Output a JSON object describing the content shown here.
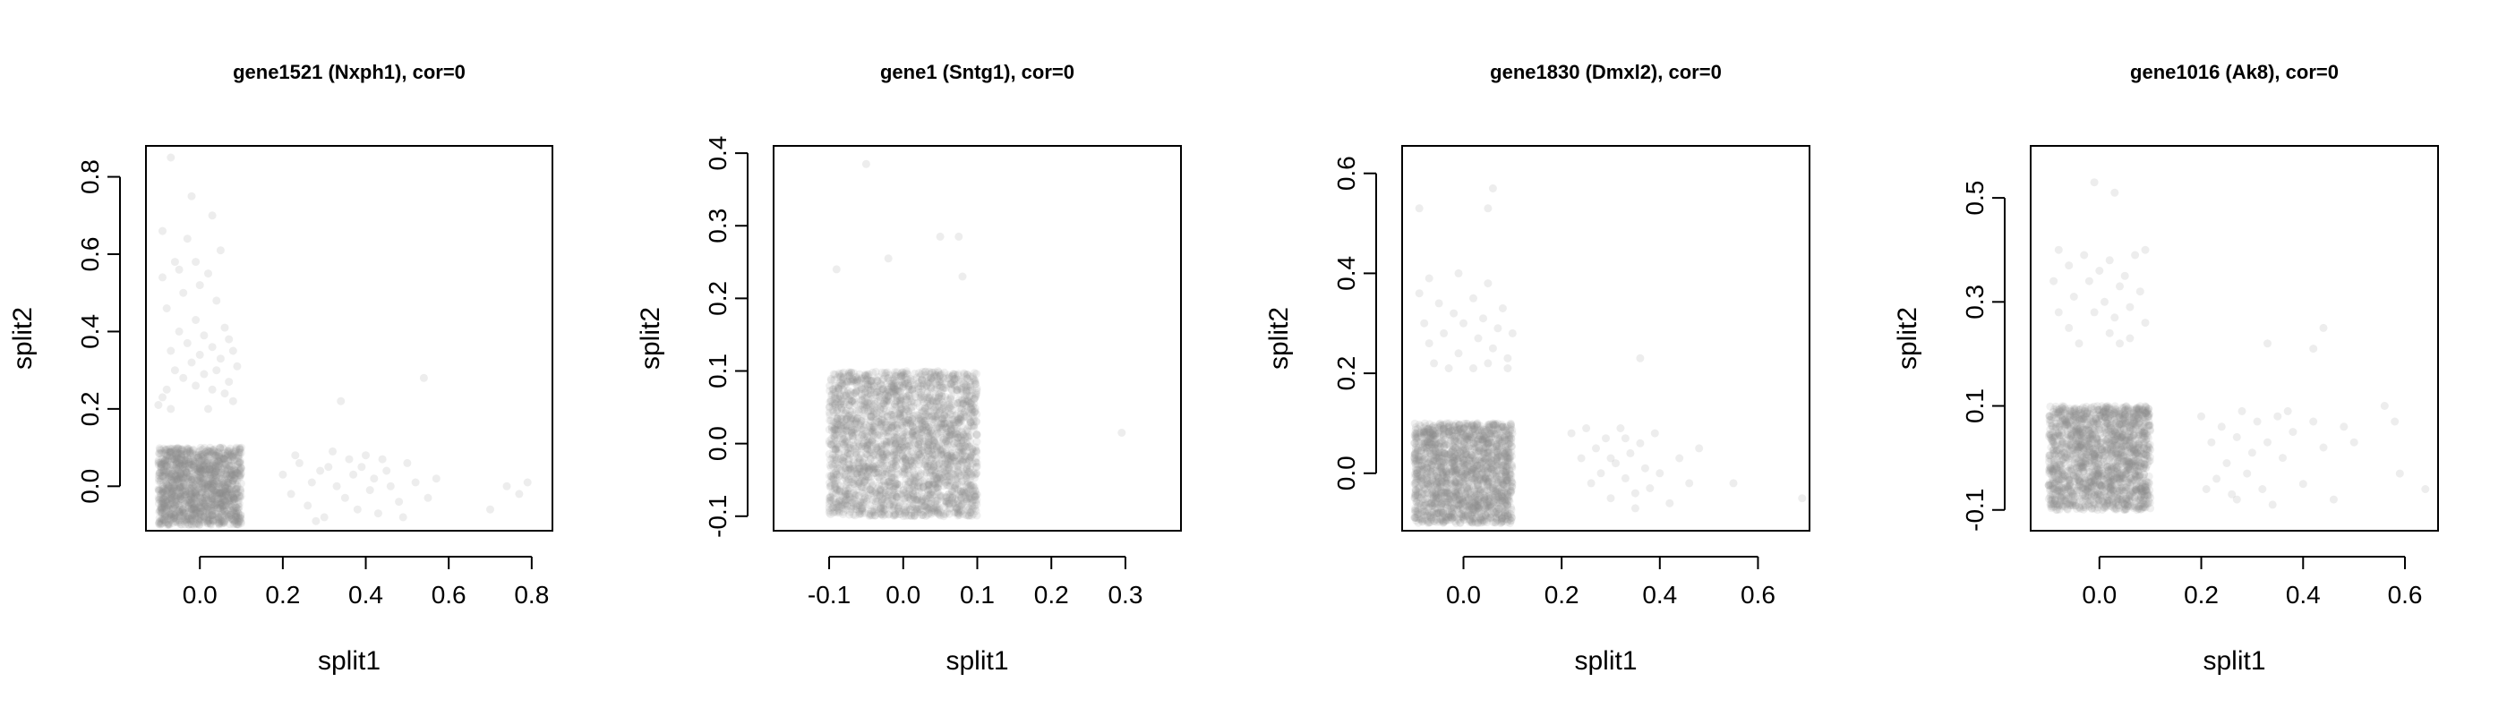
{
  "chart_data": [
    {
      "type": "scatter",
      "title": "gene1521 (Nxph1), cor=0",
      "xlabel": "split1",
      "ylabel": "split2",
      "xlim": [
        -0.13,
        0.85
      ],
      "ylim": [
        -0.115,
        0.88
      ],
      "xticks": [
        0.0,
        0.2,
        0.4,
        0.6,
        0.8
      ],
      "yticks": [
        0.0,
        0.2,
        0.4,
        0.6,
        0.8
      ],
      "point_color": "#888888",
      "dense_block": {
        "x": [
          -0.1,
          0.1
        ],
        "y": [
          -0.1,
          0.1
        ],
        "count": 1500
      },
      "points": [
        [
          -0.07,
          0.85
        ],
        [
          -0.02,
          0.75
        ],
        [
          0.03,
          0.7
        ],
        [
          -0.09,
          0.66
        ],
        [
          -0.03,
          0.64
        ],
        [
          0.05,
          0.61
        ],
        [
          -0.06,
          0.58
        ],
        [
          -0.01,
          0.58
        ],
        [
          -0.05,
          0.56
        ],
        [
          0.02,
          0.55
        ],
        [
          -0.09,
          0.54
        ],
        [
          0.0,
          0.52
        ],
        [
          -0.04,
          0.5
        ],
        [
          0.04,
          0.48
        ],
        [
          -0.08,
          0.46
        ],
        [
          -0.01,
          0.43
        ],
        [
          0.06,
          0.41
        ],
        [
          -0.05,
          0.4
        ],
        [
          0.01,
          0.39
        ],
        [
          0.07,
          0.38
        ],
        [
          -0.03,
          0.37
        ],
        [
          0.03,
          0.36
        ],
        [
          -0.07,
          0.35
        ],
        [
          0.08,
          0.35
        ],
        [
          0.0,
          0.34
        ],
        [
          0.05,
          0.33
        ],
        [
          -0.02,
          0.32
        ],
        [
          0.09,
          0.31
        ],
        [
          -0.06,
          0.3
        ],
        [
          0.04,
          0.3
        ],
        [
          0.01,
          0.29
        ],
        [
          -0.04,
          0.28
        ],
        [
          0.07,
          0.27
        ],
        [
          -0.01,
          0.26
        ],
        [
          0.03,
          0.25
        ],
        [
          -0.08,
          0.25
        ],
        [
          0.06,
          0.24
        ],
        [
          -0.09,
          0.23
        ],
        [
          0.08,
          0.22
        ],
        [
          -0.1,
          0.21
        ],
        [
          -0.07,
          0.2
        ],
        [
          0.02,
          0.2
        ],
        [
          0.2,
          0.03
        ],
        [
          0.22,
          -0.02
        ],
        [
          0.24,
          0.06
        ],
        [
          0.26,
          -0.05
        ],
        [
          0.27,
          0.01
        ],
        [
          0.29,
          0.04
        ],
        [
          0.3,
          -0.08
        ],
        [
          0.32,
          0.09
        ],
        [
          0.33,
          0.0
        ],
        [
          0.34,
          0.22
        ],
        [
          0.35,
          -0.03
        ],
        [
          0.36,
          0.07
        ],
        [
          0.37,
          0.03
        ],
        [
          0.38,
          -0.06
        ],
        [
          0.39,
          0.05
        ],
        [
          0.4,
          0.08
        ],
        [
          0.41,
          -0.01
        ],
        [
          0.42,
          0.02
        ],
        [
          0.43,
          -0.07
        ],
        [
          0.45,
          0.04
        ],
        [
          0.46,
          0.0
        ],
        [
          0.48,
          -0.04
        ],
        [
          0.5,
          0.06
        ],
        [
          0.52,
          0.01
        ],
        [
          0.54,
          0.28
        ],
        [
          0.55,
          -0.03
        ],
        [
          0.57,
          0.02
        ],
        [
          0.7,
          -0.06
        ],
        [
          0.74,
          0.0
        ],
        [
          0.77,
          -0.02
        ],
        [
          0.79,
          0.01
        ],
        [
          0.23,
          0.08
        ],
        [
          0.28,
          -0.09
        ],
        [
          0.31,
          0.05
        ],
        [
          0.44,
          0.07
        ],
        [
          0.49,
          -0.08
        ]
      ]
    },
    {
      "type": "scatter",
      "title": "gene1 (Sntg1), cor=0",
      "xlabel": "split1",
      "ylabel": "split2",
      "xlim": [
        -0.175,
        0.375
      ],
      "ylim": [
        -0.12,
        0.41
      ],
      "xticks": [
        -0.1,
        0.0,
        0.1,
        0.2,
        0.3
      ],
      "yticks": [
        -0.1,
        0.0,
        0.1,
        0.2,
        0.3,
        0.4
      ],
      "point_color": "#888888",
      "dense_block": {
        "x": [
          -0.1,
          0.1
        ],
        "y": [
          -0.1,
          0.1
        ],
        "count": 2500
      },
      "points": [
        [
          -0.05,
          0.385
        ],
        [
          -0.09,
          0.24
        ],
        [
          -0.02,
          0.255
        ],
        [
          0.05,
          0.285
        ],
        [
          0.075,
          0.285
        ],
        [
          0.08,
          0.23
        ],
        [
          0.295,
          0.015
        ]
      ]
    },
    {
      "type": "scatter",
      "title": "gene1830 (Dmxl2), cor=0",
      "xlabel": "split1",
      "ylabel": "split2",
      "xlim": [
        -0.125,
        0.705
      ],
      "ylim": [
        -0.115,
        0.655
      ],
      "xticks": [
        0.0,
        0.2,
        0.4,
        0.6
      ],
      "yticks": [
        0.0,
        0.2,
        0.4,
        0.6
      ],
      "point_color": "#888888",
      "dense_block": {
        "x": [
          -0.1,
          0.1
        ],
        "y": [
          -0.1,
          0.1
        ],
        "count": 1800
      },
      "points": [
        [
          -0.09,
          0.53
        ],
        [
          0.06,
          0.57
        ],
        [
          0.05,
          0.53
        ],
        [
          -0.07,
          0.39
        ],
        [
          -0.01,
          0.4
        ],
        [
          0.05,
          0.38
        ],
        [
          -0.09,
          0.36
        ],
        [
          0.02,
          0.35
        ],
        [
          -0.05,
          0.34
        ],
        [
          0.08,
          0.33
        ],
        [
          -0.02,
          0.32
        ],
        [
          0.04,
          0.31
        ],
        [
          -0.08,
          0.3
        ],
        [
          0.0,
          0.3
        ],
        [
          0.07,
          0.29
        ],
        [
          -0.04,
          0.28
        ],
        [
          0.03,
          0.27
        ],
        [
          -0.07,
          0.26
        ],
        [
          0.06,
          0.25
        ],
        [
          -0.01,
          0.24
        ],
        [
          0.09,
          0.23
        ],
        [
          -0.06,
          0.22
        ],
        [
          0.05,
          0.22
        ],
        [
          0.02,
          0.21
        ],
        [
          -0.03,
          0.21
        ],
        [
          0.09,
          0.21
        ],
        [
          0.1,
          0.28
        ],
        [
          0.36,
          0.23
        ],
        [
          0.22,
          0.08
        ],
        [
          0.24,
          0.03
        ],
        [
          0.26,
          -0.02
        ],
        [
          0.27,
          0.05
        ],
        [
          0.28,
          0.0
        ],
        [
          0.29,
          0.07
        ],
        [
          0.3,
          -0.05
        ],
        [
          0.31,
          0.02
        ],
        [
          0.32,
          0.09
        ],
        [
          0.33,
          -0.01
        ],
        [
          0.34,
          0.04
        ],
        [
          0.35,
          -0.07
        ],
        [
          0.36,
          0.06
        ],
        [
          0.37,
          0.01
        ],
        [
          0.38,
          -0.03
        ],
        [
          0.39,
          0.08
        ],
        [
          0.4,
          0.0
        ],
        [
          0.42,
          -0.06
        ],
        [
          0.44,
          0.03
        ],
        [
          0.46,
          -0.02
        ],
        [
          0.48,
          0.05
        ],
        [
          0.55,
          -0.02
        ],
        [
          0.69,
          -0.05
        ],
        [
          0.25,
          0.09
        ],
        [
          0.33,
          0.07
        ],
        [
          0.35,
          -0.04
        ],
        [
          0.3,
          0.03
        ]
      ]
    },
    {
      "type": "scatter",
      "title": "gene1016 (Ak8), cor=0",
      "xlabel": "split1",
      "ylabel": "split2",
      "xlim": [
        -0.135,
        0.665
      ],
      "ylim": [
        -0.14,
        0.6
      ],
      "xticks": [
        0.0,
        0.2,
        0.4,
        0.6
      ],
      "yticks": [
        -0.1,
        0.1,
        0.3,
        0.5
      ],
      "point_color": "#888888",
      "dense_block": {
        "x": [
          -0.1,
          0.1
        ],
        "y": [
          -0.1,
          0.1
        ],
        "count": 1800
      },
      "points": [
        [
          -0.01,
          0.53
        ],
        [
          0.03,
          0.51
        ],
        [
          -0.08,
          0.4
        ],
        [
          -0.03,
          0.39
        ],
        [
          0.02,
          0.38
        ],
        [
          0.07,
          0.39
        ],
        [
          0.09,
          0.4
        ],
        [
          -0.06,
          0.37
        ],
        [
          0.0,
          0.36
        ],
        [
          0.05,
          0.35
        ],
        [
          -0.09,
          0.34
        ],
        [
          -0.02,
          0.34
        ],
        [
          0.04,
          0.33
        ],
        [
          0.08,
          0.32
        ],
        [
          -0.05,
          0.31
        ],
        [
          0.01,
          0.3
        ],
        [
          0.06,
          0.29
        ],
        [
          -0.08,
          0.28
        ],
        [
          -0.01,
          0.28
        ],
        [
          0.03,
          0.27
        ],
        [
          0.09,
          0.26
        ],
        [
          -0.06,
          0.25
        ],
        [
          0.02,
          0.24
        ],
        [
          0.06,
          0.23
        ],
        [
          -0.04,
          0.22
        ],
        [
          0.04,
          0.22
        ],
        [
          0.44,
          0.25
        ],
        [
          0.42,
          0.21
        ],
        [
          0.33,
          0.22
        ],
        [
          0.2,
          0.08
        ],
        [
          0.22,
          0.03
        ],
        [
          0.23,
          -0.04
        ],
        [
          0.24,
          0.06
        ],
        [
          0.25,
          -0.01
        ],
        [
          0.26,
          -0.07
        ],
        [
          0.27,
          0.04
        ],
        [
          0.28,
          0.09
        ],
        [
          0.29,
          -0.03
        ],
        [
          0.3,
          0.01
        ],
        [
          0.31,
          0.07
        ],
        [
          0.32,
          -0.06
        ],
        [
          0.33,
          0.03
        ],
        [
          0.34,
          -0.09
        ],
        [
          0.35,
          0.08
        ],
        [
          0.36,
          0.0
        ],
        [
          0.38,
          0.05
        ],
        [
          0.4,
          -0.05
        ],
        [
          0.42,
          0.07
        ],
        [
          0.44,
          0.02
        ],
        [
          0.46,
          -0.08
        ],
        [
          0.48,
          0.06
        ],
        [
          0.5,
          0.03
        ],
        [
          0.56,
          0.1
        ],
        [
          0.58,
          0.07
        ],
        [
          0.59,
          -0.03
        ],
        [
          0.64,
          -0.06
        ],
        [
          0.21,
          -0.06
        ],
        [
          0.27,
          -0.08
        ],
        [
          0.37,
          0.09
        ]
      ]
    }
  ]
}
